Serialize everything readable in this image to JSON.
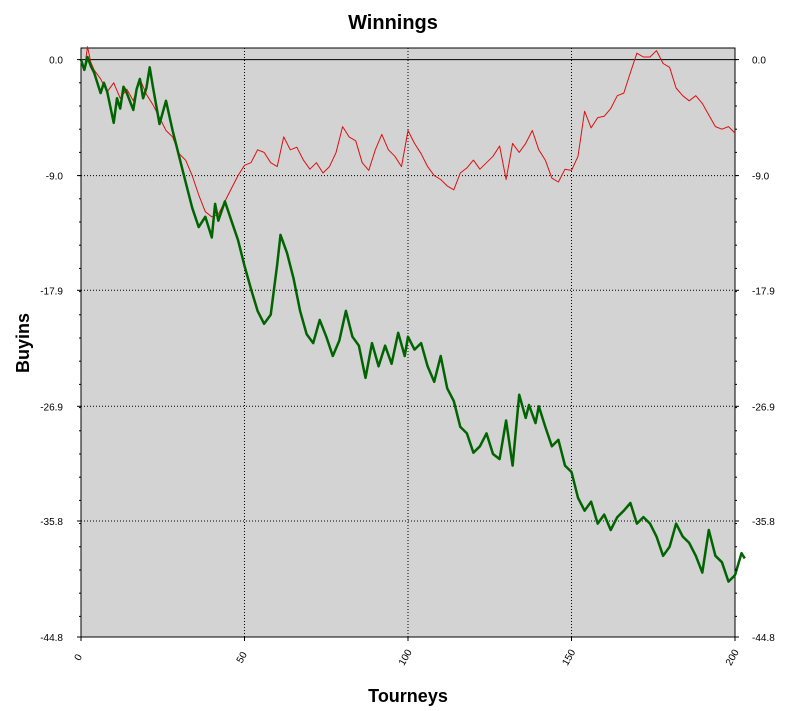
{
  "chart_data": {
    "type": "line",
    "title": "Winnings",
    "xlabel": "Tourneys",
    "ylabel": "Buyins",
    "xlim": [
      0,
      200
    ],
    "ylim": [
      -44.8,
      0.9
    ],
    "x_ticks": [
      "0",
      "50",
      "100",
      "150",
      "200"
    ],
    "y_ticks": [
      "0.0",
      "-9.0",
      "-17.9",
      "-26.9",
      "-35.8",
      "-44.8"
    ],
    "grid": true,
    "legend": "none",
    "background": "#d3d3d3",
    "series": [
      {
        "color": "#e01010",
        "points": [
          [
            0,
            0
          ],
          [
            1,
            -0.8
          ],
          [
            2,
            1.0
          ],
          [
            3,
            -0.2
          ],
          [
            4,
            -0.8
          ],
          [
            6,
            -1.5
          ],
          [
            8,
            -2.5
          ],
          [
            10,
            -1.8
          ],
          [
            12,
            -3.0
          ],
          [
            14,
            -2.3
          ],
          [
            16,
            -3.2
          ],
          [
            18,
            -1.5
          ],
          [
            20,
            -2.7
          ],
          [
            22,
            -3.5
          ],
          [
            24,
            -4.5
          ],
          [
            26,
            -5.5
          ],
          [
            28,
            -6.0
          ],
          [
            30,
            -7.3
          ],
          [
            32,
            -7.8
          ],
          [
            34,
            -9.0
          ],
          [
            36,
            -10.5
          ],
          [
            38,
            -11.8
          ],
          [
            40,
            -12.2
          ],
          [
            42,
            -12.0
          ],
          [
            44,
            -11.0
          ],
          [
            46,
            -10.0
          ],
          [
            48,
            -9.0
          ],
          [
            50,
            -8.2
          ],
          [
            52,
            -8.0
          ],
          [
            54,
            -7.0
          ],
          [
            56,
            -7.2
          ],
          [
            58,
            -8.0
          ],
          [
            60,
            -8.3
          ],
          [
            62,
            -6.0
          ],
          [
            64,
            -7.0
          ],
          [
            66,
            -6.8
          ],
          [
            68,
            -7.8
          ],
          [
            70,
            -8.5
          ],
          [
            72,
            -8.0
          ],
          [
            74,
            -8.8
          ],
          [
            76,
            -8.3
          ],
          [
            78,
            -7.2
          ],
          [
            80,
            -5.2
          ],
          [
            82,
            -6.0
          ],
          [
            84,
            -6.3
          ],
          [
            86,
            -8.0
          ],
          [
            88,
            -8.6
          ],
          [
            90,
            -7.0
          ],
          [
            92,
            -5.8
          ],
          [
            94,
            -7.0
          ],
          [
            96,
            -7.5
          ],
          [
            98,
            -8.3
          ],
          [
            100,
            -5.5
          ],
          [
            102,
            -6.5
          ],
          [
            104,
            -7.3
          ],
          [
            106,
            -8.3
          ],
          [
            108,
            -9.0
          ],
          [
            110,
            -9.3
          ],
          [
            112,
            -9.8
          ],
          [
            114,
            -10.1
          ],
          [
            116,
            -8.8
          ],
          [
            118,
            -8.4
          ],
          [
            120,
            -7.8
          ],
          [
            122,
            -8.5
          ],
          [
            124,
            -8.0
          ],
          [
            126,
            -7.5
          ],
          [
            128,
            -6.7
          ],
          [
            130,
            -9.3
          ],
          [
            132,
            -6.5
          ],
          [
            134,
            -7.2
          ],
          [
            136,
            -6.5
          ],
          [
            138,
            -5.5
          ],
          [
            140,
            -7.0
          ],
          [
            142,
            -7.8
          ],
          [
            144,
            -9.2
          ],
          [
            146,
            -9.5
          ],
          [
            148,
            -8.5
          ],
          [
            150,
            -8.6
          ],
          [
            152,
            -7.5
          ],
          [
            154,
            -4.0
          ],
          [
            156,
            -5.3
          ],
          [
            158,
            -4.5
          ],
          [
            160,
            -4.4
          ],
          [
            162,
            -3.8
          ],
          [
            164,
            -2.8
          ],
          [
            166,
            -2.6
          ],
          [
            168,
            -1.0
          ],
          [
            170,
            0.5
          ],
          [
            172,
            0.2
          ],
          [
            174,
            0.2
          ],
          [
            176,
            0.7
          ],
          [
            178,
            -0.3
          ],
          [
            180,
            -0.6
          ],
          [
            182,
            -2.2
          ],
          [
            184,
            -2.8
          ],
          [
            186,
            -3.2
          ],
          [
            188,
            -2.8
          ],
          [
            190,
            -3.4
          ],
          [
            192,
            -4.3
          ],
          [
            194,
            -5.2
          ],
          [
            196,
            -5.4
          ],
          [
            198,
            -5.2
          ],
          [
            200,
            -5.7
          ]
        ]
      },
      {
        "color": "#006400",
        "points": [
          [
            0,
            0
          ],
          [
            1,
            -0.8
          ],
          [
            2,
            0.2
          ],
          [
            3,
            -0.5
          ],
          [
            4,
            -1.0
          ],
          [
            6,
            -2.6
          ],
          [
            7,
            -1.8
          ],
          [
            8,
            -2.5
          ],
          [
            10,
            -4.9
          ],
          [
            11,
            -3.0
          ],
          [
            12,
            -3.8
          ],
          [
            13,
            -2.1
          ],
          [
            14,
            -2.6
          ],
          [
            16,
            -3.9
          ],
          [
            17,
            -2.3
          ],
          [
            18,
            -1.5
          ],
          [
            19,
            -3.0
          ],
          [
            20,
            -2.2
          ],
          [
            21,
            -0.6
          ],
          [
            22,
            -2.1
          ],
          [
            24,
            -5.0
          ],
          [
            26,
            -3.2
          ],
          [
            28,
            -5.5
          ],
          [
            30,
            -7.5
          ],
          [
            32,
            -9.5
          ],
          [
            34,
            -11.5
          ],
          [
            36,
            -13.0
          ],
          [
            38,
            -12.2
          ],
          [
            40,
            -13.8
          ],
          [
            41,
            -11.2
          ],
          [
            42,
            -12.5
          ],
          [
            44,
            -11.0
          ],
          [
            46,
            -12.5
          ],
          [
            48,
            -14.0
          ],
          [
            50,
            -16.0
          ],
          [
            52,
            -17.8
          ],
          [
            54,
            -19.5
          ],
          [
            56,
            -20.5
          ],
          [
            58,
            -19.8
          ],
          [
            60,
            -15.9
          ],
          [
            61,
            -13.6
          ],
          [
            63,
            -15.0
          ],
          [
            65,
            -17.0
          ],
          [
            67,
            -19.5
          ],
          [
            69,
            -21.3
          ],
          [
            71,
            -22.0
          ],
          [
            73,
            -20.2
          ],
          [
            75,
            -21.5
          ],
          [
            77,
            -23.0
          ],
          [
            79,
            -21.8
          ],
          [
            81,
            -19.5
          ],
          [
            83,
            -21.5
          ],
          [
            85,
            -22.2
          ],
          [
            87,
            -24.7
          ],
          [
            89,
            -22.0
          ],
          [
            91,
            -23.8
          ],
          [
            93,
            -22.2
          ],
          [
            95,
            -23.6
          ],
          [
            97,
            -21.2
          ],
          [
            99,
            -23.0
          ],
          [
            100,
            -21.5
          ],
          [
            102,
            -22.5
          ],
          [
            104,
            -22.0
          ],
          [
            106,
            -23.8
          ],
          [
            108,
            -25.0
          ],
          [
            110,
            -23.0
          ],
          [
            112,
            -25.5
          ],
          [
            114,
            -26.5
          ],
          [
            116,
            -28.5
          ],
          [
            118,
            -29.0
          ],
          [
            120,
            -30.5
          ],
          [
            122,
            -30.0
          ],
          [
            124,
            -29.0
          ],
          [
            126,
            -30.6
          ],
          [
            128,
            -31.0
          ],
          [
            130,
            -28.0
          ],
          [
            132,
            -31.5
          ],
          [
            134,
            -26.0
          ],
          [
            136,
            -27.8
          ],
          [
            137,
            -26.8
          ],
          [
            139,
            -28.2
          ],
          [
            140,
            -26.9
          ],
          [
            142,
            -28.5
          ],
          [
            144,
            -30.0
          ],
          [
            146,
            -29.5
          ],
          [
            148,
            -31.5
          ],
          [
            150,
            -32.0
          ],
          [
            152,
            -34.0
          ],
          [
            154,
            -35.0
          ],
          [
            156,
            -34.3
          ],
          [
            158,
            -36.0
          ],
          [
            160,
            -35.3
          ],
          [
            162,
            -36.5
          ],
          [
            164,
            -35.5
          ],
          [
            166,
            -35.0
          ],
          [
            168,
            -34.4
          ],
          [
            170,
            -36.0
          ],
          [
            172,
            -35.5
          ],
          [
            174,
            -36.0
          ],
          [
            176,
            -37.0
          ],
          [
            178,
            -38.5
          ],
          [
            180,
            -37.8
          ],
          [
            182,
            -36.0
          ],
          [
            184,
            -37.0
          ],
          [
            186,
            -37.5
          ],
          [
            188,
            -38.5
          ],
          [
            190,
            -39.8
          ],
          [
            192,
            -36.5
          ],
          [
            194,
            -38.5
          ],
          [
            196,
            -39.0
          ],
          [
            198,
            -40.5
          ],
          [
            200,
            -40.0
          ],
          [
            202,
            -38.3
          ],
          [
            203,
            -38.7
          ]
        ]
      }
    ]
  }
}
